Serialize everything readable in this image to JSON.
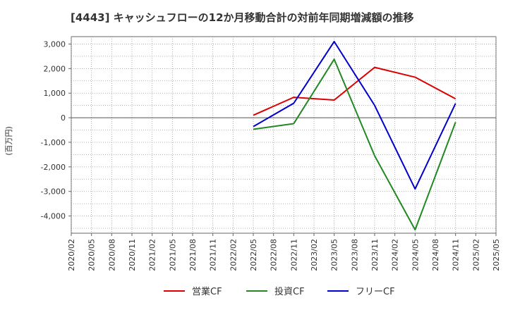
{
  "chart_data": {
    "type": "line",
    "title": "[4443]  キャッシュフローの12か月移動合計の対前年同期増減額の推移",
    "ylabel": "(百万円)",
    "xlabel": "",
    "ylim": [
      -4700,
      3300
    ],
    "yticks": [
      3000,
      2000,
      1000,
      0,
      -1000,
      -2000,
      -3000,
      -4000
    ],
    "ytick_labels": [
      "3,000",
      "2,000",
      "1,000",
      "0",
      "-1,000",
      "-2,000",
      "-3,000",
      "-4,000"
    ],
    "categories": [
      "2020/02",
      "2020/05",
      "2020/08",
      "2020/11",
      "2021/02",
      "2021/05",
      "2021/08",
      "2021/11",
      "2022/02",
      "2022/05",
      "2022/08",
      "2022/11",
      "2023/02",
      "2023/05",
      "2023/08",
      "2023/11",
      "2024/02",
      "2024/05",
      "2024/08",
      "2024/11",
      "2025/02",
      "2025/05"
    ],
    "series": [
      {
        "name": "営業CF",
        "color": "#dd0000",
        "points": [
          {
            "x": "2022/05",
            "y": 100
          },
          {
            "x": "2022/11",
            "y": 830
          },
          {
            "x": "2023/05",
            "y": 720
          },
          {
            "x": "2023/11",
            "y": 2050
          },
          {
            "x": "2024/05",
            "y": 1650
          },
          {
            "x": "2024/11",
            "y": 770
          }
        ]
      },
      {
        "name": "投資CF",
        "color": "#228822",
        "points": [
          {
            "x": "2022/05",
            "y": -470
          },
          {
            "x": "2022/11",
            "y": -240
          },
          {
            "x": "2023/05",
            "y": 2380
          },
          {
            "x": "2023/11",
            "y": -1550
          },
          {
            "x": "2024/05",
            "y": -4560
          },
          {
            "x": "2024/11",
            "y": -180
          }
        ]
      },
      {
        "name": "フリーCF",
        "color": "#0000cc",
        "points": [
          {
            "x": "2022/05",
            "y": -360
          },
          {
            "x": "2022/11",
            "y": 590
          },
          {
            "x": "2023/05",
            "y": 3100
          },
          {
            "x": "2023/11",
            "y": 500
          },
          {
            "x": "2024/05",
            "y": -2900
          },
          {
            "x": "2024/11",
            "y": 580
          }
        ]
      }
    ]
  }
}
